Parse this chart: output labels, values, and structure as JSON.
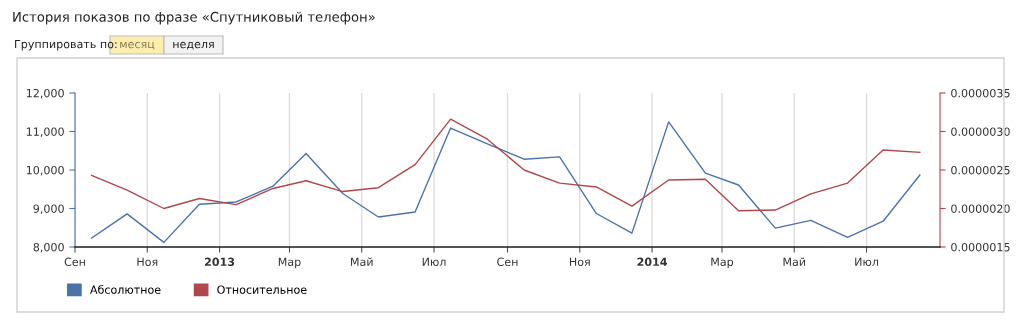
{
  "chart_data": {
    "type": "line",
    "title": "История показов по фразе «Спутниковый телефон»",
    "annotations": [
      "Группировать по:",
      "месяц",
      "неделя"
    ],
    "x": [
      "2012-09-15",
      "2012-10-15",
      "2012-11-15",
      "2012-12-15",
      "2013-01-15",
      "2013-02-15",
      "2013-03-15",
      "2013-04-15",
      "2013-05-15",
      "2013-06-15",
      "2013-07-15",
      "2013-08-15",
      "2013-09-15",
      "2013-10-15",
      "2013-11-15",
      "2013-12-15",
      "2014-01-15",
      "2014-02-15",
      "2014-03-15",
      "2014-04-15",
      "2014-05-15",
      "2014-06-15",
      "2014-07-15",
      "2014-08-15"
    ],
    "series": [
      {
        "name": "Абсолютное",
        "color": "#4a74a8",
        "values": [
          8230,
          8860,
          8120,
          9110,
          9170,
          9580,
          10430,
          9390,
          8780,
          8910,
          11090,
          10680,
          10280,
          10340,
          8870,
          8360,
          11250,
          9920,
          9610,
          8490,
          8690,
          8250,
          8670,
          9870
        ]
      },
      {
        "name": "Относительное",
        "color": "#b0484b",
        "axis": "y2",
        "values": [
          2.43e-06,
          2.24e-06,
          2e-06,
          2.13e-06,
          2.05e-06,
          2.26e-06,
          2.36e-06,
          2.22e-06,
          2.27e-06,
          2.57e-06,
          3.16e-06,
          2.9e-06,
          2.5e-06,
          2.33e-06,
          2.28e-06,
          2.03e-06,
          2.37e-06,
          2.38e-06,
          1.97e-06,
          1.98e-06,
          2.19e-06,
          2.33e-06,
          2.76e-06,
          2.73e-06
        ]
      }
    ],
    "xlim": [
      "2012-09-01",
      "2014-09-01"
    ],
    "xticks": [
      {
        "value": "2012-09-01",
        "label": "Сен"
      },
      {
        "value": "2012-11-01",
        "label": "Ноя"
      },
      {
        "value": "2013-01-01",
        "label": "2013"
      },
      {
        "value": "2013-03-01",
        "label": "Мар"
      },
      {
        "value": "2013-05-01",
        "label": "Май"
      },
      {
        "value": "2013-07-01",
        "label": "Июл"
      },
      {
        "value": "2013-09-01",
        "label": "Сен"
      },
      {
        "value": "2013-11-01",
        "label": "Ноя"
      },
      {
        "value": "2014-01-01",
        "label": "2014"
      },
      {
        "value": "2014-03-01",
        "label": "Мар"
      },
      {
        "value": "2014-05-01",
        "label": "Май"
      },
      {
        "value": "2014-07-01",
        "label": "Июл"
      }
    ],
    "ylim": [
      8000,
      12000
    ],
    "yticks": [
      {
        "value": 8000,
        "label": "8,000"
      },
      {
        "value": 9000,
        "label": "9,000"
      },
      {
        "value": 10000,
        "label": "10,000"
      },
      {
        "value": 11000,
        "label": "11,000"
      },
      {
        "value": 12000,
        "label": "12,000"
      }
    ],
    "y2lim": [
      1.5e-06,
      3.5e-06
    ],
    "y2ticks": [
      {
        "value": 1.5e-06,
        "label": "0.0000015"
      },
      {
        "value": 2e-06,
        "label": "0.0000020"
      },
      {
        "value": 2.5e-06,
        "label": "0.0000025"
      },
      {
        "value": 3e-06,
        "label": "0.0000030"
      },
      {
        "value": 3.5e-06,
        "label": "0.0000035"
      }
    ],
    "grid": "x",
    "legend": "bottom left",
    "marker": "none",
    "line_style": "solid"
  }
}
